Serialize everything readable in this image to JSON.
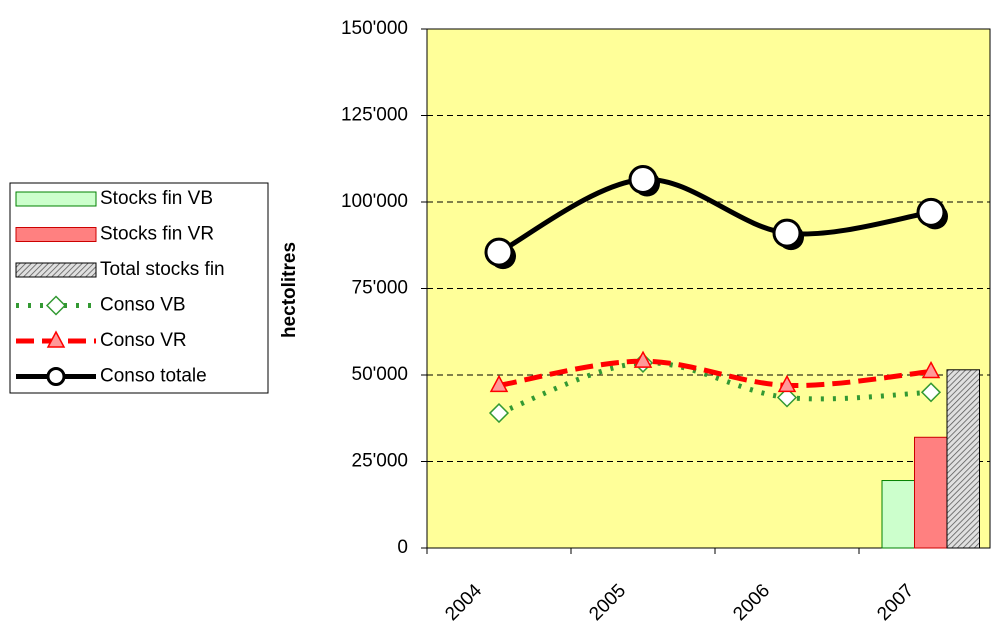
{
  "chart_data": {
    "type": "bar-line",
    "y_label": "hectolitres",
    "categories": [
      "2004",
      "2005",
      "2006",
      "2007"
    ],
    "ylim": [
      0,
      150000
    ],
    "yticks": [
      {
        "value": 0,
        "label": "0"
      },
      {
        "value": 25000,
        "label": "25'000"
      },
      {
        "value": 50000,
        "label": "50'000"
      },
      {
        "value": 75000,
        "label": "75'000"
      },
      {
        "value": 100000,
        "label": "100'000"
      },
      {
        "value": 125000,
        "label": "125'000"
      },
      {
        "value": 150000,
        "label": "150'000"
      }
    ],
    "grid": true,
    "legend": "left",
    "series": [
      {
        "name": "Stocks fin VB",
        "type": "bar",
        "color": "#ccffcc",
        "edgecolor": "#008000",
        "values": [
          null,
          null,
          null,
          19500
        ]
      },
      {
        "name": "Stocks fin VR",
        "type": "bar",
        "color": "#ff8080",
        "edgecolor": "#cc0000",
        "values": [
          null,
          null,
          null,
          32000
        ]
      },
      {
        "name": "Total stocks fin",
        "type": "bar",
        "color": "#c0c0c0",
        "edgecolor": "#000000",
        "pattern": "hatch",
        "values": [
          null,
          null,
          null,
          51500
        ]
      },
      {
        "name": "Conso VB",
        "type": "line",
        "color": "#339933",
        "linestyle": "dotted",
        "marker": "diamond",
        "markerfill": "#ffffff",
        "values": [
          39000,
          53500,
          43500,
          45000
        ]
      },
      {
        "name": "Conso VR",
        "type": "line",
        "color": "#ff0000",
        "linestyle": "dashed",
        "marker": "triangle",
        "markerfill": "#ff9999",
        "values": [
          47000,
          54000,
          47000,
          51000
        ]
      },
      {
        "name": "Conso totale",
        "type": "line",
        "color": "#000000",
        "linestyle": "solid",
        "marker": "circle",
        "markerfill": "#ffffff",
        "values": [
          85500,
          106500,
          91000,
          97000
        ]
      }
    ]
  }
}
